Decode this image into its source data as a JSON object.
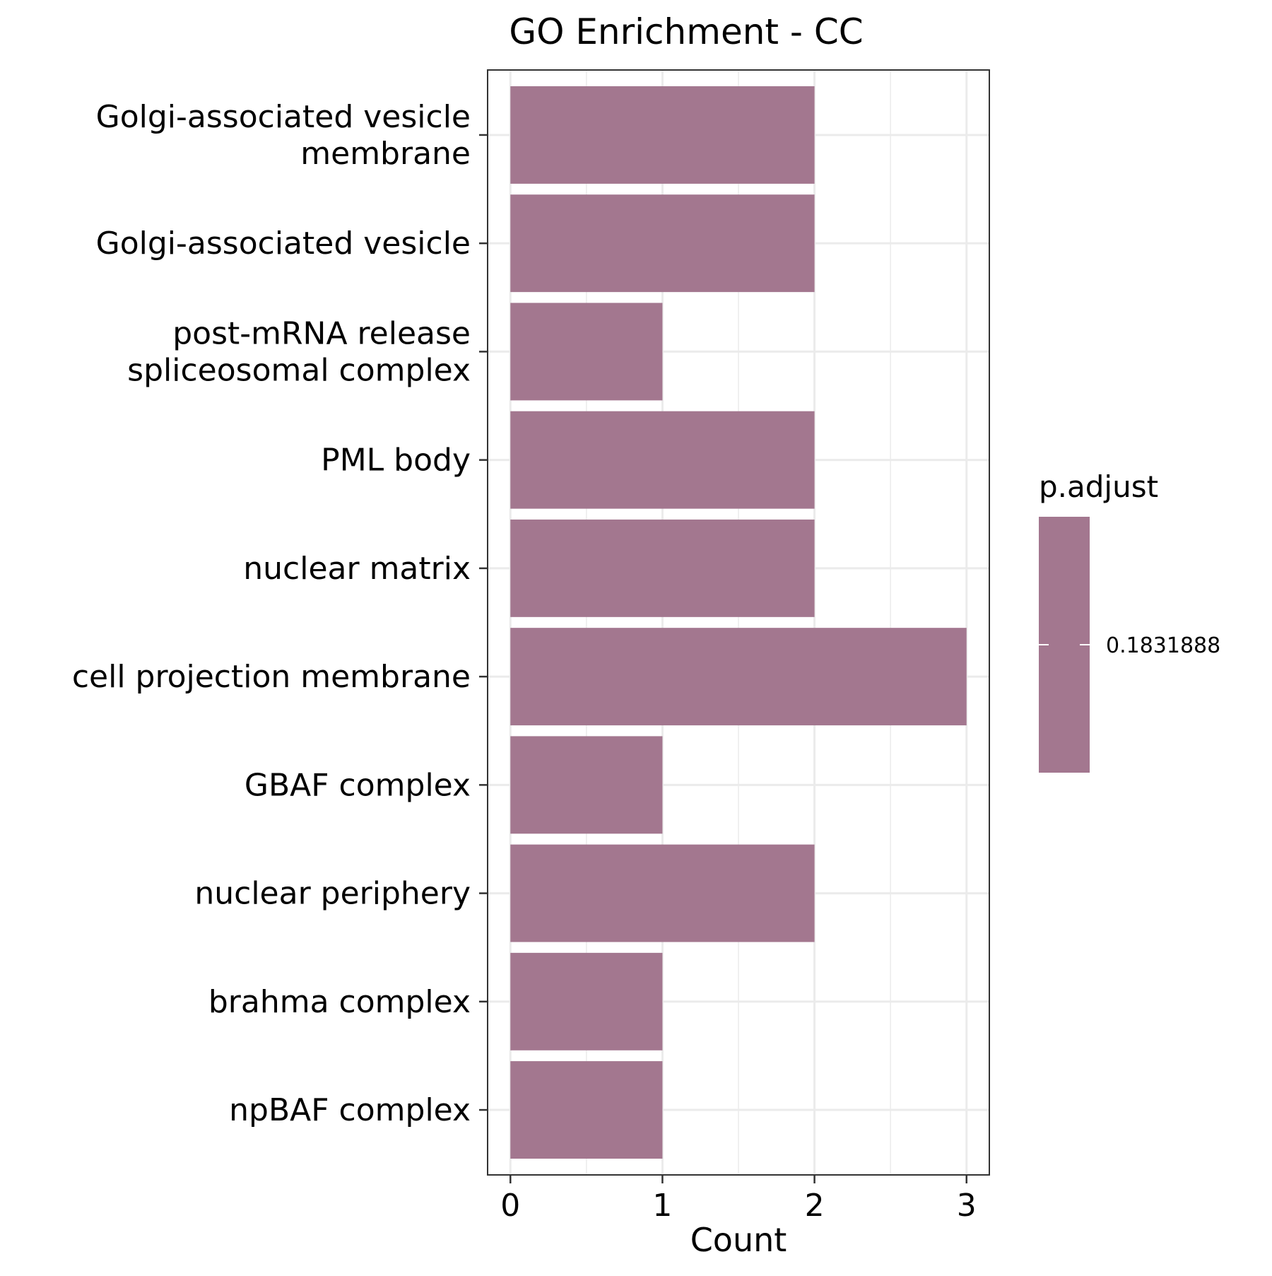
{
  "chart_data": {
    "type": "bar",
    "orientation": "horizontal",
    "title": "GO Enrichment - CC",
    "xlabel": "Count",
    "ylabel": "",
    "xlim": [
      -0.15,
      3.15
    ],
    "xticks": [
      0,
      1,
      2,
      3
    ],
    "grid": true,
    "bar_color": "#a3778f",
    "categories": [
      "Golgi-associated vesicle membrane",
      "Golgi-associated vesicle",
      "post-mRNA release spliceosomal complex",
      "PML body",
      "nuclear matrix",
      "cell projection membrane",
      "GBAF complex",
      "nuclear periphery",
      "brahma complex",
      "npBAF complex"
    ],
    "category_lines": [
      [
        "Golgi-associated vesicle",
        "membrane"
      ],
      [
        "Golgi-associated vesicle"
      ],
      [
        "post-mRNA release",
        "spliceosomal complex"
      ],
      [
        "PML body"
      ],
      [
        "nuclear matrix"
      ],
      [
        "cell projection membrane"
      ],
      [
        "GBAF complex"
      ],
      [
        "nuclear periphery"
      ],
      [
        "brahma complex"
      ],
      [
        "npBAF complex"
      ]
    ],
    "values": [
      2,
      2,
      1,
      2,
      2,
      3,
      1,
      2,
      1,
      1
    ],
    "legend": {
      "title": "p.adjust",
      "placement": "right",
      "value_label": "0.1831888",
      "color": "#a3778f"
    }
  }
}
